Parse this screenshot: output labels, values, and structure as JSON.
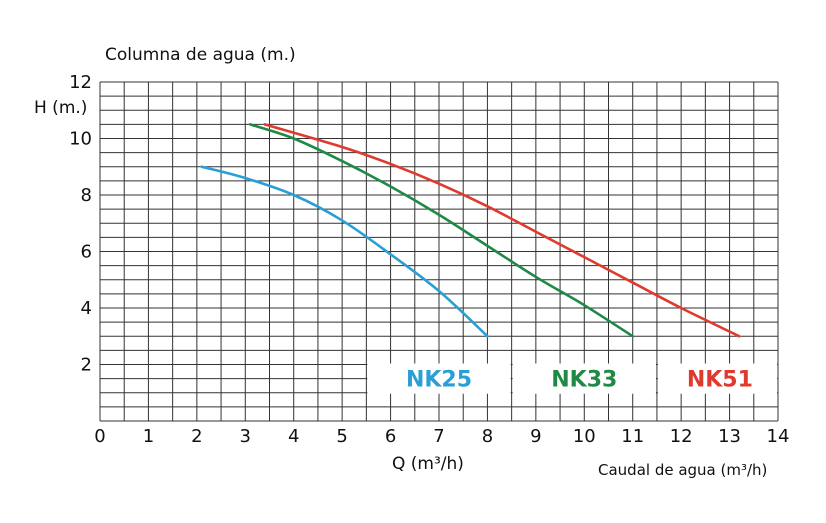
{
  "chart_data": {
    "type": "line",
    "title_top": "Columna de agua (m.)",
    "ylabel": "H (m.)",
    "xlabel": "Q (m³/h)",
    "xlabel_right": "Caudal de agua (m³/h)",
    "xlim": [
      0,
      14
    ],
    "ylim": [
      0,
      12
    ],
    "x_ticks": [
      0,
      1,
      2,
      3,
      4,
      5,
      6,
      7,
      8,
      9,
      10,
      11,
      12,
      13,
      14
    ],
    "y_ticks": [
      2,
      4,
      6,
      8,
      10,
      12
    ],
    "grid": true,
    "series": [
      {
        "name": "NK25",
        "color": "#2a9fd6",
        "points": [
          [
            2.1,
            9.0
          ],
          [
            3.0,
            8.6
          ],
          [
            4.0,
            8.0
          ],
          [
            5.0,
            7.1
          ],
          [
            6.0,
            5.9
          ],
          [
            7.0,
            4.6
          ],
          [
            8.0,
            3.0
          ]
        ]
      },
      {
        "name": "NK33",
        "color": "#1e8a45",
        "points": [
          [
            3.1,
            10.5
          ],
          [
            4.0,
            10.0
          ],
          [
            5.0,
            9.2
          ],
          [
            6.0,
            8.3
          ],
          [
            7.0,
            7.3
          ],
          [
            8.0,
            6.2
          ],
          [
            9.0,
            5.1
          ],
          [
            10.0,
            4.1
          ],
          [
            11.0,
            3.0
          ]
        ]
      },
      {
        "name": "NK51",
        "color": "#e03a2e",
        "points": [
          [
            3.4,
            10.5
          ],
          [
            5.0,
            9.7
          ],
          [
            6.0,
            9.1
          ],
          [
            7.0,
            8.4
          ],
          [
            8.0,
            7.6
          ],
          [
            9.0,
            6.7
          ],
          [
            10.0,
            5.8
          ],
          [
            11.0,
            4.9
          ],
          [
            12.0,
            4.0
          ],
          [
            13.2,
            3.0
          ]
        ]
      }
    ]
  }
}
